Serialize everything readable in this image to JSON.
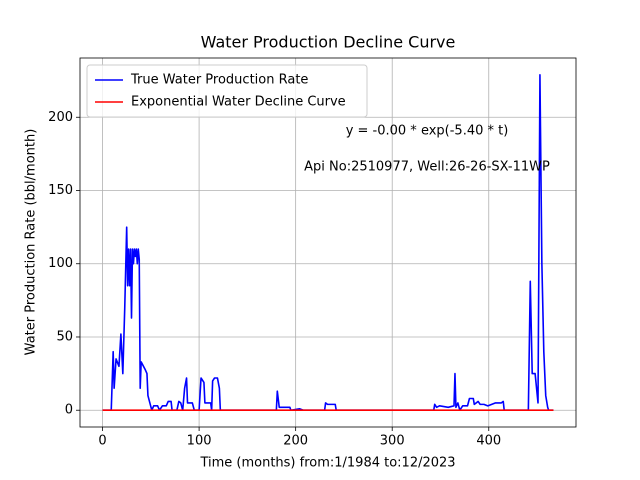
{
  "chart_data": {
    "type": "line",
    "title": "Water Production Decline Curve",
    "x_label": "Time (months) from:1/1984 to:12/2023",
    "y_label": "Water Production Rate (bbl/month)",
    "annotations": [
      "y = -0.00 * exp(-5.40 * t)",
      "Api No:2510977, Well:26-26-SX-11WP"
    ],
    "xlim": [
      -23.35,
      490.35
    ],
    "ylim": [
      -11.45,
      240.45
    ],
    "xticks": [
      0,
      100,
      200,
      300,
      400
    ],
    "yticks": [
      0,
      50,
      100,
      150,
      200
    ],
    "grid": true,
    "legend": "upper left",
    "series": [
      {
        "name": "True Water Production Rate",
        "color": "#0000ff",
        "x": [
          0,
          9,
          11,
          12,
          14,
          17,
          19,
          21,
          23,
          25,
          26,
          27,
          28,
          29,
          30,
          31,
          32,
          33,
          34,
          35,
          36,
          37,
          38,
          39,
          40,
          44,
          46,
          47,
          49,
          51,
          53,
          57,
          59,
          62,
          66,
          68,
          71,
          72,
          77,
          79,
          81,
          83,
          85,
          87,
          88,
          93,
          95,
          100,
          102,
          105,
          106,
          112,
          113,
          114,
          116,
          119,
          121,
          122,
          180,
          181,
          183,
          187,
          194,
          195,
          204,
          208,
          230,
          231,
          233,
          241,
          242,
          343,
          344,
          346,
          349,
          358,
          364,
          365,
          366,
          368,
          370,
          373,
          378,
          380,
          384,
          385,
          389,
          391,
          395,
          399,
          403,
          407,
          413,
          415,
          416,
          441,
          443,
          445,
          448,
          451,
          453,
          455,
          457,
          459,
          461,
          462,
          467
        ],
        "values": [
          0,
          0,
          40,
          15,
          35,
          30,
          52,
          25,
          70,
          125,
          85,
          110,
          85,
          110,
          63,
          110,
          100,
          110,
          105,
          110,
          100,
          110,
          103,
          15,
          33,
          28,
          25,
          10,
          5,
          0,
          3,
          3,
          0,
          3,
          3,
          6,
          6,
          0,
          0,
          6,
          5,
          0,
          15,
          22,
          5,
          5,
          0,
          0,
          22,
          19,
          5,
          5,
          0,
          20,
          22,
          22,
          15,
          0,
          0,
          13,
          2,
          2,
          2,
          0,
          1,
          0,
          0,
          5,
          4,
          4,
          0,
          0,
          4,
          2,
          3,
          2,
          3,
          25,
          2,
          5,
          0,
          3,
          3,
          8,
          8,
          4,
          6,
          4,
          4,
          3,
          4,
          5,
          5,
          6,
          0,
          0,
          88,
          25,
          25,
          5,
          229,
          100,
          40,
          10,
          2,
          0,
          0
        ]
      },
      {
        "name": "Exponential Water Decline Curve",
        "color": "#ff0000",
        "x": [
          0,
          467
        ],
        "values": [
          0,
          0
        ]
      }
    ]
  }
}
